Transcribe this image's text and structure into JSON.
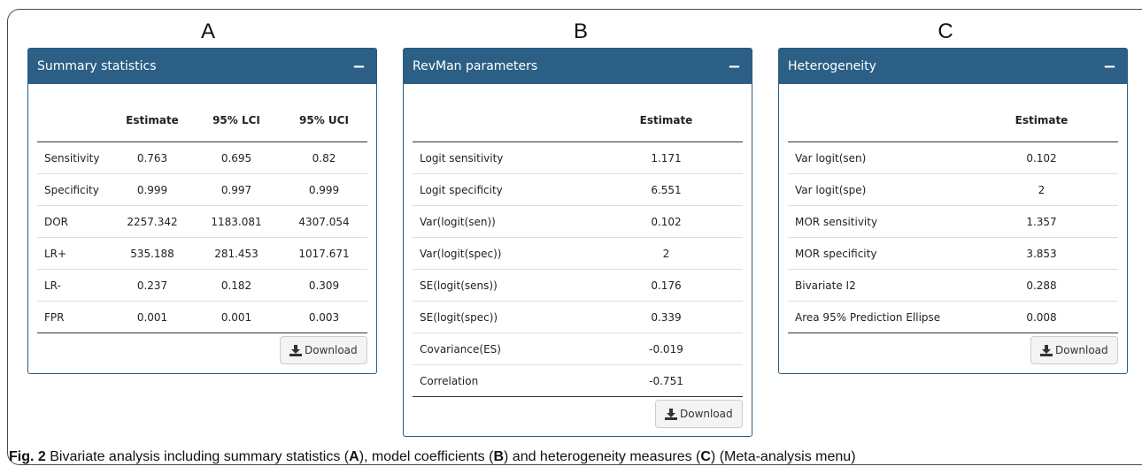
{
  "panels": {
    "a": {
      "letter": "A",
      "title": "Summary statistics",
      "collapse": "−",
      "columns": [
        "",
        "Estimate",
        "95% LCI",
        "95% UCI"
      ],
      "rows": [
        [
          "Sensitivity",
          "0.763",
          "0.695",
          "0.82"
        ],
        [
          "Specificity",
          "0.999",
          "0.997",
          "0.999"
        ],
        [
          "DOR",
          "2257.342",
          "1183.081",
          "4307.054"
        ],
        [
          "LR+",
          "535.188",
          "281.453",
          "1017.671"
        ],
        [
          "LR-",
          "0.237",
          "0.182",
          "0.309"
        ],
        [
          "FPR",
          "0.001",
          "0.001",
          "0.003"
        ]
      ],
      "download": "Download"
    },
    "b": {
      "letter": "B",
      "title": "RevMan parameters",
      "collapse": "−",
      "columns": [
        "",
        "Estimate"
      ],
      "rows": [
        [
          "Logit sensitivity",
          "1.171"
        ],
        [
          "Logit specificity",
          "6.551"
        ],
        [
          "Var(logit(sen))",
          "0.102"
        ],
        [
          "Var(logit(spec))",
          "2"
        ],
        [
          "SE(logit(sens))",
          "0.176"
        ],
        [
          "SE(logit(spec))",
          "0.339"
        ],
        [
          "Covariance(ES)",
          "-0.019"
        ],
        [
          "Correlation",
          "-0.751"
        ]
      ],
      "download": "Download"
    },
    "c": {
      "letter": "C",
      "title": "Heterogeneity",
      "collapse": "−",
      "columns": [
        "",
        "Estimate"
      ],
      "rows": [
        [
          "Var logit(sen)",
          "0.102"
        ],
        [
          "Var logit(spe)",
          "2"
        ],
        [
          "MOR sensitivity",
          "1.357"
        ],
        [
          "MOR specificity",
          "3.853"
        ],
        [
          "Bivariate I2",
          "0.288"
        ],
        [
          "Area 95% Prediction Ellipse",
          "0.008"
        ]
      ],
      "download": "Download"
    }
  },
  "caption": {
    "label": "Fig. 2",
    "parts": [
      "  Bivariate analysis including summary statistics (",
      "A",
      "), model coefficients (",
      "B",
      ") and heterogeneity measures (",
      "C",
      ") (Meta-analysis menu)"
    ]
  },
  "colors": {
    "header": "#2c5f85",
    "border": "#2a5c80"
  },
  "icons": {
    "collapse": "minus-icon",
    "download": "download-icon"
  }
}
